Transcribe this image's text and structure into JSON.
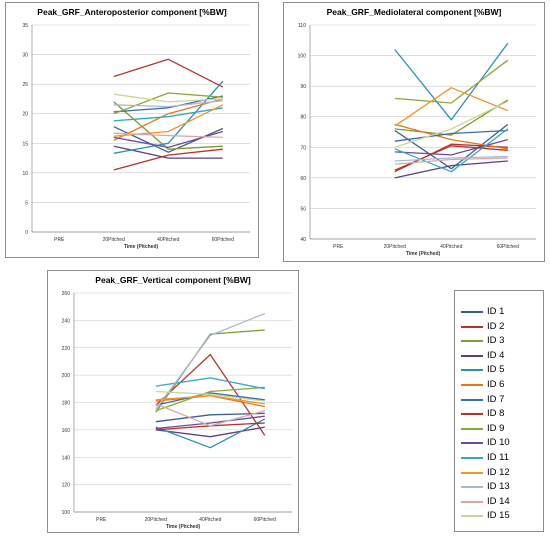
{
  "chart_data": [
    {
      "type": "line",
      "title": "Peak_GRF_Anteroposterior component [%BW]",
      "xlabel": "Time (Pitched)",
      "ylabel": "",
      "categories": [
        "PRE",
        "20Pitched",
        "40Pitched",
        "60Pitched"
      ],
      "ylim": [
        0,
        35
      ],
      "yticks": [
        0,
        5,
        10,
        15,
        20,
        25,
        30,
        35
      ],
      "grid": true,
      "series": [
        {
          "name": "ID 1",
          "values": [
            null,
            17.8,
            13.5,
            17.5
          ]
        },
        {
          "name": "ID 2",
          "values": [
            null,
            26.3,
            29.2,
            24.5
          ]
        },
        {
          "name": "ID 3",
          "values": [
            null,
            22.0,
            14.0,
            14.5
          ]
        },
        {
          "name": "ID 4",
          "values": [
            null,
            14.5,
            12.5,
            12.5
          ]
        },
        {
          "name": "ID 5",
          "values": [
            null,
            13.3,
            15.0,
            25.5
          ]
        },
        {
          "name": "ID 6",
          "values": [
            null,
            15.5,
            20.0,
            22.5
          ]
        },
        {
          "name": "ID 7",
          "values": [
            null,
            20.3,
            21.0,
            23.0
          ]
        },
        {
          "name": "ID 8",
          "values": [
            null,
            10.5,
            13.0,
            14.0
          ]
        },
        {
          "name": "ID 9",
          "values": [
            null,
            20.0,
            23.5,
            22.8
          ]
        },
        {
          "name": "ID 10",
          "values": [
            null,
            16.0,
            14.3,
            17.0
          ]
        },
        {
          "name": "ID 11",
          "values": [
            null,
            18.8,
            19.5,
            21.0
          ]
        },
        {
          "name": "ID 12",
          "values": [
            null,
            16.2,
            17.0,
            21.5
          ]
        },
        {
          "name": "ID 13",
          "values": [
            null,
            21.5,
            21.2,
            22.2
          ]
        },
        {
          "name": "ID 14",
          "values": [
            null,
            16.7,
            16.3,
            16.0
          ]
        },
        {
          "name": "ID 15",
          "values": [
            null,
            23.3,
            22.0,
            22.5
          ]
        }
      ],
      "colors": [
        "#3c5e93",
        "#b23631",
        "#7d9a34",
        "#5d3f87",
        "#2e8fb5",
        "#e0781d",
        "#3a6ea6",
        "#b3332f",
        "#8aa83a",
        "#6c4b9b",
        "#35a6c4",
        "#f4932a",
        "#a9b7d4",
        "#dba7a5",
        "#c4d79b"
      ]
    },
    {
      "type": "line",
      "title": "Peak_GRF_Mediolateral component [%BW]",
      "xlabel": "Time (Pitched)",
      "ylabel": "",
      "categories": [
        "PRE",
        "20Pitched",
        "40Pitched",
        "60Pitched"
      ],
      "ylim": [
        40,
        110
      ],
      "yticks": [
        40,
        50,
        60,
        70,
        80,
        90,
        100,
        110
      ],
      "grid": true,
      "series": [
        {
          "name": "ID 1",
          "values": [
            null,
            75.5,
            63.0,
            77.5
          ]
        },
        {
          "name": "ID 2",
          "values": [
            null,
            62.0,
            71.0,
            70.0
          ]
        },
        {
          "name": "ID 3",
          "values": [
            null,
            76.0,
            74.0,
            85.5
          ]
        },
        {
          "name": "ID 4",
          "values": [
            null,
            60.0,
            64.0,
            65.5
          ]
        },
        {
          "name": "ID 5",
          "values": [
            null,
            102.0,
            79.0,
            104.0
          ]
        },
        {
          "name": "ID 6",
          "values": [
            null,
            77.5,
            72.5,
            69.5
          ]
        },
        {
          "name": "ID 7",
          "values": [
            null,
            72.0,
            74.5,
            75.5
          ]
        },
        {
          "name": "ID 8",
          "values": [
            null,
            62.5,
            70.5,
            69.0
          ]
        },
        {
          "name": "ID 9",
          "values": [
            null,
            86.0,
            84.5,
            98.5
          ]
        },
        {
          "name": "ID 10",
          "values": [
            null,
            68.5,
            67.5,
            72.5
          ]
        },
        {
          "name": "ID 11",
          "values": [
            null,
            69.5,
            62.0,
            76.0
          ]
        },
        {
          "name": "ID 12",
          "values": [
            null,
            77.0,
            89.5,
            82.0
          ]
        },
        {
          "name": "ID 13",
          "values": [
            null,
            65.5,
            66.5,
            67.0
          ]
        },
        {
          "name": "ID 14",
          "values": [
            null,
            64.5,
            66.0,
            66.5
          ]
        },
        {
          "name": "ID 15",
          "values": [
            null,
            70.0,
            76.0,
            85.0
          ]
        }
      ],
      "colors": [
        "#3c5e93",
        "#b23631",
        "#7d9a34",
        "#5d3f87",
        "#2e8fb5",
        "#e0781d",
        "#3a6ea6",
        "#b3332f",
        "#8aa83a",
        "#6c4b9b",
        "#35a6c4",
        "#f4932a",
        "#a9b7d4",
        "#dba7a5",
        "#c4d79b"
      ]
    },
    {
      "type": "line",
      "title": "Peak_GRF_Vertical component [%BW]",
      "xlabel": "Time (Pitched)",
      "ylabel": "",
      "categories": [
        "PRE",
        "20Pitched",
        "40Pitched",
        "60Pitched"
      ],
      "ylim": [
        100,
        260
      ],
      "yticks": [
        100,
        120,
        140,
        160,
        180,
        200,
        220,
        240,
        260
      ],
      "grid": true,
      "series": [
        {
          "name": "ID 1",
          "values": [
            null,
            166,
            171,
            172
          ]
        },
        {
          "name": "ID 2",
          "values": [
            null,
            178,
            215,
            156
          ]
        },
        {
          "name": "ID 3",
          "values": [
            null,
            173,
            230,
            233
          ]
        },
        {
          "name": "ID 4",
          "values": [
            null,
            160,
            155,
            162
          ]
        },
        {
          "name": "ID 5",
          "values": [
            null,
            162,
            147,
            168
          ]
        },
        {
          "name": "ID 6",
          "values": [
            null,
            181,
            185,
            177
          ]
        },
        {
          "name": "ID 7",
          "values": [
            null,
            178,
            187,
            182
          ]
        },
        {
          "name": "ID 8",
          "values": [
            null,
            160,
            163,
            165
          ]
        },
        {
          "name": "ID 9",
          "values": [
            null,
            174,
            188,
            191
          ]
        },
        {
          "name": "ID 10",
          "values": [
            null,
            161,
            165,
            170
          ]
        },
        {
          "name": "ID 11",
          "values": [
            null,
            192,
            198,
            190
          ]
        },
        {
          "name": "ID 12",
          "values": [
            null,
            182,
            185,
            179
          ]
        },
        {
          "name": "ID 13",
          "values": [
            null,
            175,
            229,
            245
          ]
        },
        {
          "name": "ID 14",
          "values": [
            null,
            179,
            163,
            174
          ]
        },
        {
          "name": "ID 15",
          "values": [
            null,
            188,
            186,
            181
          ]
        }
      ],
      "colors": [
        "#3c5e93",
        "#b23631",
        "#7d9a34",
        "#5d3f87",
        "#2e8fb5",
        "#e0781d",
        "#3a6ea6",
        "#b3332f",
        "#8aa83a",
        "#6c4b9b",
        "#35a6c4",
        "#f4932a",
        "#a9b7d4",
        "#dba7a5",
        "#c4d79b"
      ]
    }
  ],
  "legend": {
    "items": [
      {
        "label": "ID 1",
        "color": "#3c5e93"
      },
      {
        "label": "ID 2",
        "color": "#b23631"
      },
      {
        "label": "ID 3",
        "color": "#7d9a34"
      },
      {
        "label": "ID 4",
        "color": "#5d3f87"
      },
      {
        "label": "ID 5",
        "color": "#2e8fb5"
      },
      {
        "label": "ID 6",
        "color": "#e0781d"
      },
      {
        "label": "ID 7",
        "color": "#3a6ea6"
      },
      {
        "label": "ID 8",
        "color": "#b3332f"
      },
      {
        "label": "ID 9",
        "color": "#8aa83a"
      },
      {
        "label": "ID 10",
        "color": "#6c4b9b"
      },
      {
        "label": "ID 11",
        "color": "#35a6c4"
      },
      {
        "label": "ID 12",
        "color": "#f4932a"
      },
      {
        "label": "ID 13",
        "color": "#a9b7d4"
      },
      {
        "label": "ID 14",
        "color": "#dba7a5"
      },
      {
        "label": "ID 15",
        "color": "#c4d79b"
      }
    ]
  }
}
